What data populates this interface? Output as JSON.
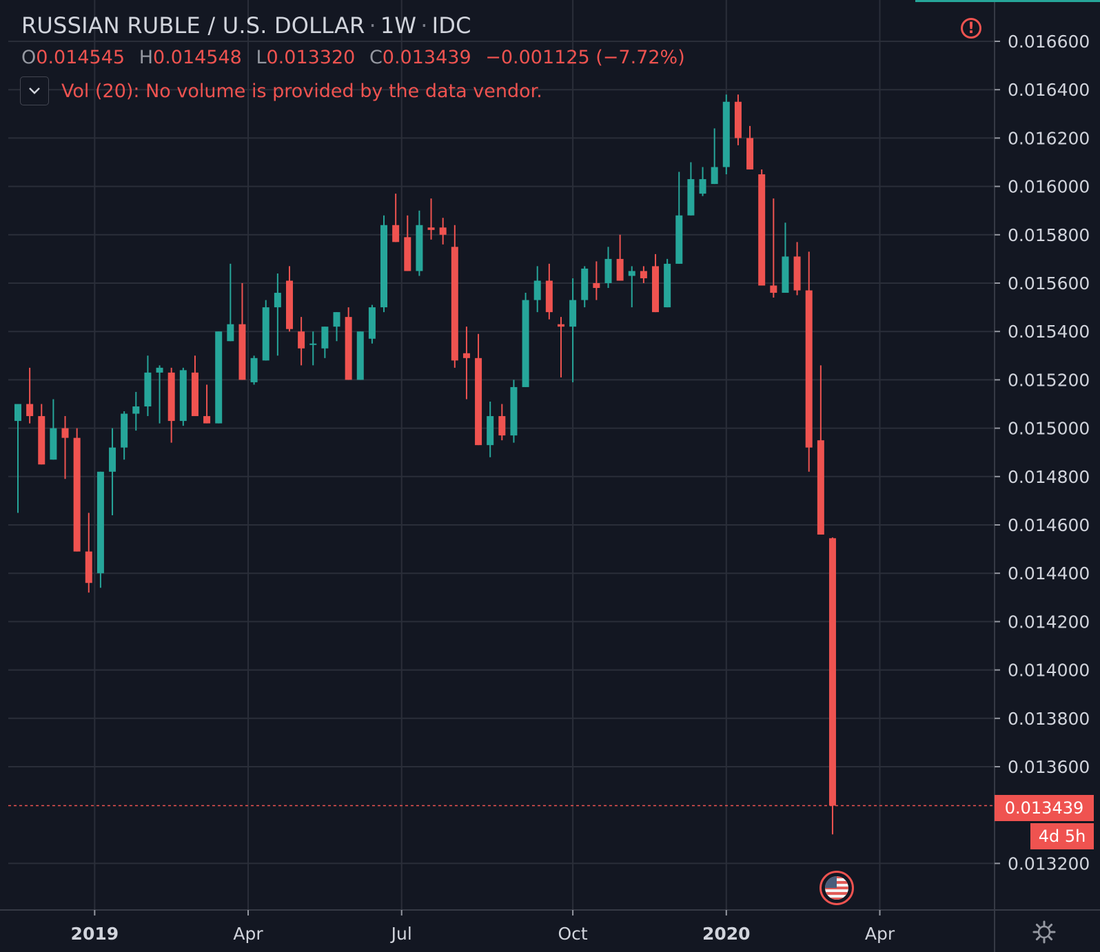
{
  "header": {
    "symbol": "RUSSIAN RUBLE / U.S. DOLLAR",
    "interval": "1W",
    "source": "IDC",
    "ohlc": {
      "o_label": "O",
      "o": "0.014545",
      "h_label": "H",
      "h": "0.014548",
      "l_label": "L",
      "l": "0.013320",
      "c_label": "C",
      "c": "0.013439",
      "change": "−0.001125 (−7.72%)"
    },
    "volume_text": "Vol (20): No volume is provided by the data vendor.",
    "warning_glyph": "!"
  },
  "last_price_label": "0.013439",
  "countdown_label": "4d 5h",
  "colors": {
    "background": "#131722",
    "grid": "#2a2e39",
    "up": "#26a69a",
    "down": "#ef5350",
    "text": "#d1d4dc"
  },
  "chart_data": {
    "type": "candlestick",
    "title": "RUSSIAN RUBLE / U.S. DOLLAR · 1W · IDC",
    "ylim": [
      0.01302,
      0.01665
    ],
    "y_ticks": [
      "0.016600",
      "0.016400",
      "0.016200",
      "0.016000",
      "0.015800",
      "0.015600",
      "0.015400",
      "0.015200",
      "0.015000",
      "0.014800",
      "0.014600",
      "0.014400",
      "0.014200",
      "0.014000",
      "0.013800",
      "0.013600",
      "0.013200"
    ],
    "x_ticks": [
      {
        "label": "2019",
        "index": 6.5,
        "bold": true
      },
      {
        "label": "Apr",
        "index": 19.5,
        "bold": false
      },
      {
        "label": "Jul",
        "index": 32.5,
        "bold": false
      },
      {
        "label": "Oct",
        "index": 47,
        "bold": false
      },
      {
        "label": "2020",
        "index": 60,
        "bold": true
      },
      {
        "label": "Apr",
        "index": 73,
        "bold": false
      }
    ],
    "grid": true,
    "last_price": 0.013439,
    "candles": [
      [
        0.01503,
        0.0151,
        0.01465,
        0.0151
      ],
      [
        0.0151,
        0.01525,
        0.01502,
        0.01505
      ],
      [
        0.01505,
        0.0151,
        0.01485,
        0.01485
      ],
      [
        0.01487,
        0.01512,
        0.01487,
        0.015
      ],
      [
        0.015,
        0.01505,
        0.01479,
        0.01496
      ],
      [
        0.01496,
        0.015,
        0.01449,
        0.01449
      ],
      [
        0.01449,
        0.01465,
        0.01432,
        0.01436
      ],
      [
        0.0144,
        0.01482,
        0.01434,
        0.01482
      ],
      [
        0.01482,
        0.015,
        0.01464,
        0.01492
      ],
      [
        0.01492,
        0.01507,
        0.01487,
        0.01506
      ],
      [
        0.01506,
        0.01515,
        0.01499,
        0.01509
      ],
      [
        0.01509,
        0.0153,
        0.01505,
        0.01523
      ],
      [
        0.01523,
        0.01526,
        0.01502,
        0.01525
      ],
      [
        0.01523,
        0.01525,
        0.01494,
        0.01503
      ],
      [
        0.01503,
        0.01525,
        0.01501,
        0.01524
      ],
      [
        0.01523,
        0.0153,
        0.01508,
        0.01505
      ],
      [
        0.01505,
        0.01518,
        0.01502,
        0.01502
      ],
      [
        0.01502,
        0.0154,
        0.01502,
        0.0154
      ],
      [
        0.01536,
        0.01568,
        0.01536,
        0.01543
      ],
      [
        0.01543,
        0.0156,
        0.0152,
        0.0152
      ],
      [
        0.01519,
        0.0153,
        0.01518,
        0.01529
      ],
      [
        0.01528,
        0.01553,
        0.01528,
        0.0155
      ],
      [
        0.0155,
        0.01564,
        0.0153,
        0.01556
      ],
      [
        0.01561,
        0.01567,
        0.0154,
        0.01541
      ],
      [
        0.0154,
        0.01546,
        0.01526,
        0.01533
      ],
      [
        0.01535,
        0.0154,
        0.01526,
        0.01535
      ],
      [
        0.01533,
        0.01542,
        0.01529,
        0.01542
      ],
      [
        0.01542,
        0.01548,
        0.01536,
        0.01548
      ],
      [
        0.01546,
        0.0155,
        0.0152,
        0.0152
      ],
      [
        0.0152,
        0.0154,
        0.0152,
        0.0154
      ],
      [
        0.01537,
        0.01551,
        0.01535,
        0.0155
      ],
      [
        0.0155,
        0.01588,
        0.01548,
        0.01584
      ],
      [
        0.01584,
        0.01597,
        0.01577,
        0.01577
      ],
      [
        0.01579,
        0.01588,
        0.01565,
        0.01565
      ],
      [
        0.01565,
        0.0159,
        0.01563,
        0.01584
      ],
      [
        0.01583,
        0.01595,
        0.01578,
        0.01582
      ],
      [
        0.01583,
        0.01587,
        0.01576,
        0.0158
      ],
      [
        0.01575,
        0.01584,
        0.01525,
        0.01528
      ],
      [
        0.01531,
        0.01542,
        0.01512,
        0.01529
      ],
      [
        0.01529,
        0.01539,
        0.01493,
        0.01493
      ],
      [
        0.01493,
        0.01511,
        0.01488,
        0.01505
      ],
      [
        0.01505,
        0.0151,
        0.01495,
        0.01497
      ],
      [
        0.01497,
        0.0152,
        0.01494,
        0.01517
      ],
      [
        0.01517,
        0.01556,
        0.01517,
        0.01553
      ],
      [
        0.01553,
        0.01567,
        0.01548,
        0.01561
      ],
      [
        0.01561,
        0.01568,
        0.01545,
        0.01548
      ],
      [
        0.01543,
        0.01546,
        0.01521,
        0.01542
      ],
      [
        0.01542,
        0.01562,
        0.01519,
        0.01553
      ],
      [
        0.01553,
        0.01567,
        0.0155,
        0.01566
      ],
      [
        0.0156,
        0.01569,
        0.01553,
        0.01558
      ],
      [
        0.0156,
        0.01575,
        0.01558,
        0.0157
      ],
      [
        0.0157,
        0.0158,
        0.01561,
        0.01561
      ],
      [
        0.01563,
        0.01567,
        0.0155,
        0.01565
      ],
      [
        0.01565,
        0.01567,
        0.0156,
        0.01562
      ],
      [
        0.01567,
        0.01572,
        0.01548,
        0.01548
      ],
      [
        0.0155,
        0.0157,
        0.0155,
        0.01568
      ],
      [
        0.01568,
        0.01606,
        0.01568,
        0.01588
      ],
      [
        0.01588,
        0.0161,
        0.01588,
        0.01603
      ],
      [
        0.01597,
        0.01608,
        0.01596,
        0.01603
      ],
      [
        0.01601,
        0.01624,
        0.01601,
        0.01608
      ],
      [
        0.01608,
        0.01638,
        0.01605,
        0.01635
      ],
      [
        0.01635,
        0.01638,
        0.01617,
        0.0162
      ],
      [
        0.0162,
        0.01625,
        0.01607,
        0.01607
      ],
      [
        0.01605,
        0.01607,
        0.01559,
        0.01559
      ],
      [
        0.01559,
        0.01595,
        0.01554,
        0.01556
      ],
      [
        0.01556,
        0.01585,
        0.01556,
        0.01571
      ],
      [
        0.01571,
        0.01577,
        0.01555,
        0.01557
      ],
      [
        0.01557,
        0.01573,
        0.01482,
        0.01492
      ],
      [
        0.01495,
        0.01526,
        0.01456,
        0.01456
      ],
      [
        0.014545,
        0.014548,
        0.01332,
        0.013439
      ]
    ]
  }
}
